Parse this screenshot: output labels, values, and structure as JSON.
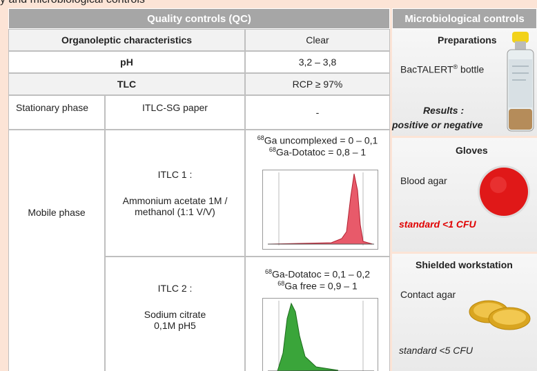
{
  "top_fragment": "y and microbiological controls",
  "qc": {
    "header": "Quality controls (QC)",
    "organoleptic": {
      "label": "Organoleptic characteristics",
      "value": "Clear"
    },
    "ph": {
      "label": "pH",
      "value": "3,2 – 3,8"
    },
    "tlc": {
      "label": "TLC",
      "value": "RCP ≥ 97%"
    },
    "stationary": {
      "label": "Stationary phase",
      "method": "ITLC-SG paper",
      "value": "-"
    },
    "mobile": {
      "label": "Mobile phase",
      "itlc1": {
        "name": "ITLC 1 :",
        "solvent": "Ammonium acetate 1M / methanol (1:1 V/V)",
        "results": [
          {
            "isotope": "68",
            "text": "Ga uncomplexed = 0 – 0,1"
          },
          {
            "isotope": "68",
            "text": "Ga-Dotatoc = 0,8 – 1"
          }
        ]
      },
      "itlc2": {
        "name": "ITLC 2 :",
        "solvent": "Sodium citrate 0,1M pH5",
        "results": [
          {
            "isotope": "68",
            "text": "Ga-Dotatoc = 0,1 – 0,2"
          },
          {
            "isotope": "68",
            "text": "Ga free = 0,9 – 1"
          }
        ]
      }
    }
  },
  "micro": {
    "header": "Microbiological controls",
    "preparations": {
      "title": "Preparations",
      "item": "BacTALERT",
      "item_mark": "®",
      "item_suffix": " bottle",
      "results_title": "Results :",
      "results_text": "positive or negative"
    },
    "gloves": {
      "title": "Gloves",
      "item": "Blood agar",
      "standard": "standard <1 CFU"
    },
    "workstation": {
      "title": "Shielded workstation",
      "item": "Contact agar",
      "standard": "standard <5 CFU"
    }
  }
}
